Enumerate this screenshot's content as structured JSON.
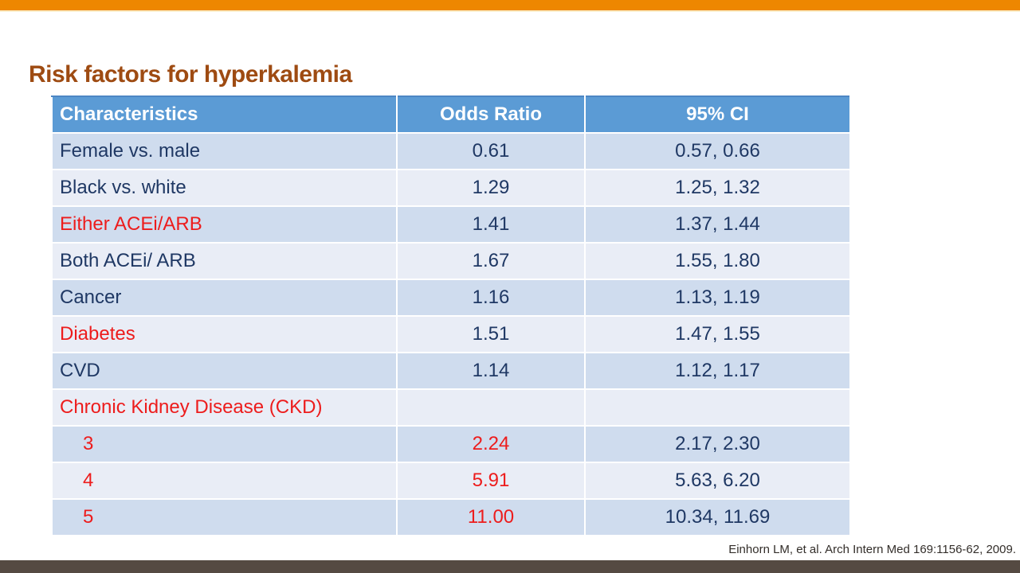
{
  "slide": {
    "title": "Risk factors for hyperkalemia",
    "citation": "Einhorn LM, et al. Arch Intern Med 169:1156-62, 2009."
  },
  "colors": {
    "top_bar": "#EE8700",
    "title_text": "#9E4B12",
    "header_bg": "#5B9BD5",
    "band_dark": "#CFDCEE",
    "band_light": "#E9EDF6",
    "body_text": "#1F3864",
    "highlight_red": "#ED1C1C",
    "footer_bar": "#554A42"
  },
  "table": {
    "headers": [
      "Characteristics",
      "Odds Ratio",
      "95% CI"
    ],
    "rows": [
      {
        "label": "Female vs. male",
        "odds_ratio": "0.61",
        "ci": "0.57, 0.66",
        "label_red": false,
        "or_red": false,
        "indent": false
      },
      {
        "label": "Black vs. white",
        "odds_ratio": "1.29",
        "ci": "1.25, 1.32",
        "label_red": false,
        "or_red": false,
        "indent": false
      },
      {
        "label": "Either ACEi/ARB",
        "odds_ratio": "1.41",
        "ci": "1.37, 1.44",
        "label_red": true,
        "or_red": false,
        "indent": false
      },
      {
        "label": "Both ACEi/ ARB",
        "odds_ratio": "1.67",
        "ci": "1.55, 1.80",
        "label_red": false,
        "or_red": false,
        "indent": false
      },
      {
        "label": "Cancer",
        "odds_ratio": "1.16",
        "ci": "1.13, 1.19",
        "label_red": false,
        "or_red": false,
        "indent": false
      },
      {
        "label": "Diabetes",
        "odds_ratio": "1.51",
        "ci": "1.47, 1.55",
        "label_red": true,
        "or_red": false,
        "indent": false
      },
      {
        "label": "CVD",
        "odds_ratio": "1.14",
        "ci": "1.12, 1.17",
        "label_red": false,
        "or_red": false,
        "indent": false
      },
      {
        "label": "Chronic Kidney Disease (CKD)",
        "odds_ratio": "",
        "ci": "",
        "label_red": true,
        "or_red": false,
        "indent": false
      },
      {
        "label": "3",
        "odds_ratio": "2.24",
        "ci": "2.17, 2.30",
        "label_red": true,
        "or_red": true,
        "indent": true
      },
      {
        "label": "4",
        "odds_ratio": "5.91",
        "ci": "5.63, 6.20",
        "label_red": true,
        "or_red": true,
        "indent": true
      },
      {
        "label": "5",
        "odds_ratio": "11.00",
        "ci": "10.34, 11.69",
        "label_red": true,
        "or_red": true,
        "indent": true
      }
    ]
  }
}
